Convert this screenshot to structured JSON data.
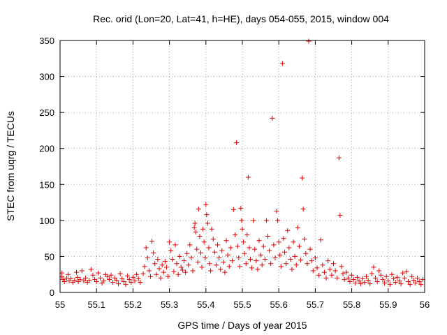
{
  "chart_data": {
    "type": "scatter",
    "title": "Rec. orid (Lon=20, Lat=41, h=HE), days 054-055, 2015, window 004",
    "xlabel": "GPS time / Days of year 2015",
    "ylabel": "STEC from uqrg / TECUs",
    "xlim": [
      55,
      56
    ],
    "ylim": [
      0,
      350
    ],
    "xticks": [
      "55",
      "55.1",
      "55.2",
      "55.3",
      "55.4",
      "55.5",
      "55.6",
      "55.7",
      "55.8",
      "55.9",
      "56"
    ],
    "yticks": [
      "0",
      "50",
      "100",
      "150",
      "200",
      "250",
      "300",
      "350"
    ],
    "grid": true,
    "marker": "plus",
    "color": "#e00000",
    "series": [
      {
        "points": [
          [
            55.005,
            27
          ],
          [
            55.005,
            22
          ],
          [
            55.008,
            18
          ],
          [
            55.012,
            15
          ],
          [
            55.018,
            20
          ],
          [
            55.022,
            25
          ],
          [
            55.025,
            16
          ],
          [
            55.03,
            19
          ],
          [
            55.035,
            14
          ],
          [
            55.04,
            17
          ],
          [
            55.045,
            28
          ],
          [
            55.048,
            21
          ],
          [
            55.05,
            15
          ],
          [
            55.055,
            18
          ],
          [
            55.06,
            30
          ],
          [
            55.065,
            16
          ],
          [
            55.07,
            20
          ],
          [
            55.075,
            14
          ],
          [
            55.08,
            17
          ],
          [
            55.085,
            32
          ],
          [
            55.09,
            24
          ],
          [
            55.095,
            18
          ],
          [
            55.1,
            15
          ],
          [
            55.105,
            27
          ],
          [
            55.11,
            20
          ],
          [
            55.115,
            13
          ],
          [
            55.12,
            16
          ],
          [
            55.125,
            25
          ],
          [
            55.13,
            22
          ],
          [
            55.135,
            18
          ],
          [
            55.14,
            24
          ],
          [
            55.145,
            14
          ],
          [
            55.15,
            20
          ],
          [
            55.155,
            17
          ],
          [
            55.16,
            12
          ],
          [
            55.165,
            26
          ],
          [
            55.17,
            19
          ],
          [
            55.175,
            15
          ],
          [
            55.18,
            11
          ],
          [
            55.185,
            23
          ],
          [
            55.19,
            18
          ],
          [
            55.195,
            14
          ],
          [
            55.2,
            21
          ],
          [
            55.205,
            16
          ],
          [
            55.21,
            25
          ],
          [
            55.215,
            19
          ],
          [
            55.22,
            14
          ],
          [
            55.228,
            26
          ],
          [
            55.232,
            36
          ],
          [
            55.236,
            62
          ],
          [
            55.24,
            48
          ],
          [
            55.244,
            30
          ],
          [
            55.248,
            22
          ],
          [
            55.252,
            71
          ],
          [
            55.256,
            55
          ],
          [
            55.26,
            40
          ],
          [
            55.264,
            25
          ],
          [
            55.268,
            46
          ],
          [
            55.272,
            33
          ],
          [
            55.276,
            20
          ],
          [
            55.28,
            38
          ],
          [
            55.284,
            28
          ],
          [
            55.288,
            43
          ],
          [
            55.292,
            35
          ],
          [
            55.296,
            22
          ],
          [
            55.3,
            70
          ],
          [
            55.304,
            58
          ],
          [
            55.308,
            46
          ],
          [
            55.312,
            29
          ],
          [
            55.316,
            66
          ],
          [
            55.32,
            40
          ],
          [
            55.324,
            25
          ],
          [
            55.328,
            50
          ],
          [
            55.332,
            35
          ],
          [
            55.336,
            31
          ],
          [
            55.34,
            44
          ],
          [
            55.344,
            28
          ],
          [
            55.348,
            54
          ],
          [
            55.352,
            38
          ],
          [
            55.356,
            66
          ],
          [
            55.36,
            48
          ],
          [
            55.364,
            30
          ],
          [
            55.368,
            90
          ],
          [
            55.37,
            96
          ],
          [
            55.372,
            84
          ],
          [
            55.375,
            60
          ],
          [
            55.378,
            42
          ],
          [
            55.38,
            116
          ],
          [
            55.383,
            78
          ],
          [
            55.386,
            55
          ],
          [
            55.389,
            35
          ],
          [
            55.392,
            88
          ],
          [
            55.395,
            70
          ],
          [
            55.398,
            48
          ],
          [
            55.4,
            122
          ],
          [
            55.402,
            108
          ],
          [
            55.405,
            96
          ],
          [
            55.408,
            62
          ],
          [
            55.41,
            40
          ],
          [
            55.413,
            30
          ],
          [
            55.416,
            88
          ],
          [
            55.42,
            74
          ],
          [
            55.424,
            56
          ],
          [
            55.428,
            38
          ],
          [
            55.432,
            66
          ],
          [
            55.436,
            48
          ],
          [
            55.44,
            32
          ],
          [
            55.444,
            58
          ],
          [
            55.448,
            42
          ],
          [
            55.452,
            28
          ],
          [
            55.456,
            72
          ],
          [
            55.46,
            52
          ],
          [
            55.464,
            36
          ],
          [
            55.468,
            62
          ],
          [
            55.472,
            44
          ],
          [
            55.476,
            115
          ],
          [
            55.48,
            80
          ],
          [
            55.484,
            208
          ],
          [
            55.487,
            64
          ],
          [
            55.49,
            48
          ],
          [
            55.493,
            36
          ],
          [
            55.496,
            117
          ],
          [
            55.498,
            100
          ],
          [
            55.5,
            88
          ],
          [
            55.503,
            70
          ],
          [
            55.506,
            54
          ],
          [
            55.51,
            40
          ],
          [
            55.513,
            80
          ],
          [
            55.516,
            160
          ],
          [
            55.519,
            62
          ],
          [
            55.522,
            46
          ],
          [
            55.526,
            34
          ],
          [
            55.53,
            100
          ],
          [
            55.534,
            60
          ],
          [
            55.538,
            44
          ],
          [
            55.542,
            32
          ],
          [
            55.546,
            72
          ],
          [
            55.55,
            52
          ],
          [
            55.554,
            38
          ],
          [
            55.558,
            64
          ],
          [
            55.562,
            46
          ],
          [
            55.566,
            100
          ],
          [
            55.57,
            78
          ],
          [
            55.574,
            58
          ],
          [
            55.578,
            40
          ],
          [
            55.582,
            242
          ],
          [
            55.586,
            66
          ],
          [
            55.59,
            48
          ],
          [
            55.594,
            113
          ],
          [
            55.597,
            100
          ],
          [
            55.6,
            70
          ],
          [
            55.603,
            52
          ],
          [
            55.606,
            36
          ],
          [
            55.61,
            318
          ],
          [
            55.613,
            75
          ],
          [
            55.616,
            56
          ],
          [
            55.62,
            40
          ],
          [
            55.624,
            86
          ],
          [
            55.628,
            62
          ],
          [
            55.632,
            46
          ],
          [
            55.636,
            32
          ],
          [
            55.64,
            70
          ],
          [
            55.644,
            50
          ],
          [
            55.648,
            38
          ],
          [
            55.652,
            90
          ],
          [
            55.656,
            64
          ],
          [
            55.66,
            45
          ],
          [
            55.664,
            159
          ],
          [
            55.667,
            116
          ],
          [
            55.67,
            74
          ],
          [
            55.674,
            54
          ],
          [
            55.678,
            40
          ],
          [
            55.682,
            349
          ],
          [
            55.686,
            60
          ],
          [
            55.69,
            44
          ],
          [
            55.694,
            30
          ],
          [
            55.7,
            48
          ],
          [
            55.705,
            34
          ],
          [
            55.71,
            24
          ],
          [
            55.715,
            73
          ],
          [
            55.72,
            38
          ],
          [
            55.725,
            28
          ],
          [
            55.73,
            20
          ],
          [
            55.735,
            44
          ],
          [
            55.74,
            32
          ],
          [
            55.745,
            24
          ],
          [
            55.75,
            40
          ],
          [
            55.755,
            30
          ],
          [
            55.76,
            20
          ],
          [
            55.765,
            187
          ],
          [
            55.768,
            107
          ],
          [
            55.772,
            36
          ],
          [
            55.776,
            26
          ],
          [
            55.78,
            18
          ],
          [
            55.785,
            28
          ],
          [
            55.79,
            20
          ],
          [
            55.795,
            15
          ],
          [
            55.8,
            24
          ],
          [
            55.805,
            18
          ],
          [
            55.81,
            13
          ],
          [
            55.815,
            21
          ],
          [
            55.82,
            16
          ],
          [
            55.825,
            12
          ],
          [
            55.83,
            19
          ],
          [
            55.835,
            14
          ],
          [
            55.84,
            22
          ],
          [
            55.845,
            17
          ],
          [
            55.85,
            12
          ],
          [
            55.855,
            26
          ],
          [
            55.86,
            35
          ],
          [
            55.865,
            20
          ],
          [
            55.87,
            15
          ],
          [
            55.875,
            30
          ],
          [
            55.88,
            24
          ],
          [
            55.885,
            18
          ],
          [
            55.89,
            13
          ],
          [
            55.895,
            22
          ],
          [
            55.9,
            16
          ],
          [
            55.905,
            11
          ],
          [
            55.91,
            25
          ],
          [
            55.915,
            19
          ],
          [
            55.92,
            14
          ],
          [
            55.925,
            21
          ],
          [
            55.93,
            16
          ],
          [
            55.935,
            12
          ],
          [
            55.94,
            27
          ],
          [
            55.945,
            20
          ],
          [
            55.95,
            29
          ],
          [
            55.955,
            15
          ],
          [
            55.96,
            11
          ],
          [
            55.965,
            22
          ],
          [
            55.97,
            17
          ],
          [
            55.975,
            13
          ],
          [
            55.98,
            20
          ],
          [
            55.985,
            15
          ],
          [
            55.99,
            11
          ],
          [
            55.995,
            18
          ]
        ]
      }
    ]
  }
}
